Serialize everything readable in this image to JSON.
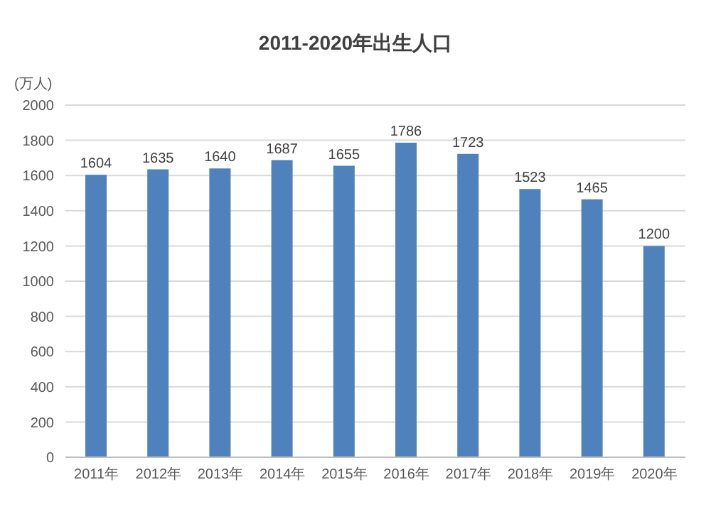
{
  "chart_data": {
    "type": "bar",
    "title": "2011-2020年出生人口",
    "ylabel": "(万人)",
    "categories": [
      "2011年",
      "2012年",
      "2013年",
      "2014年",
      "2015年",
      "2016年",
      "2017年",
      "2018年",
      "2019年",
      "2020年"
    ],
    "values": [
      1604,
      1635,
      1640,
      1687,
      1655,
      1786,
      1723,
      1523,
      1465,
      1200
    ],
    "color": "#4f81bd",
    "ylim": [
      0,
      2000
    ],
    "yticks": [
      0,
      200,
      400,
      600,
      800,
      1000,
      1200,
      1400,
      1600,
      1800,
      2000
    ],
    "grid": "y",
    "data_labels": true
  }
}
